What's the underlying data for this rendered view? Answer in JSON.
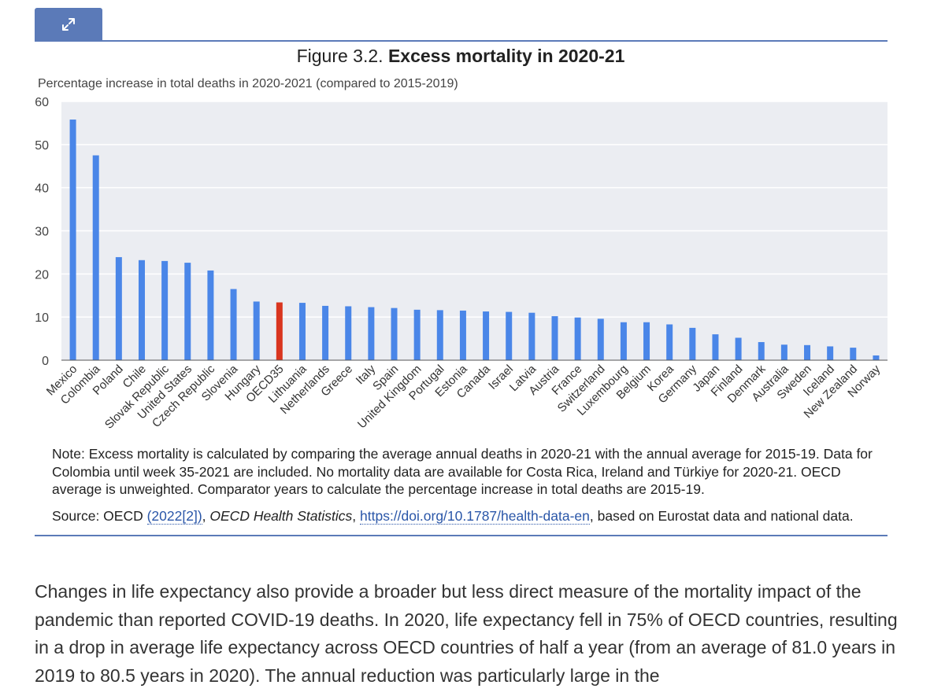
{
  "figure": {
    "expand_icon": "expand-arrows-icon",
    "label": "Figure 3.2.",
    "title": "Excess mortality in 2020-21",
    "accent_color": "#5b7ab8"
  },
  "chart_data": {
    "type": "bar",
    "ylabel": "Percentage increase in total deaths in 2020-2021 (compared to 2015-2019)",
    "ylim": [
      0,
      60
    ],
    "yticks": [
      0,
      10,
      20,
      30,
      40,
      50,
      60
    ],
    "grid": true,
    "categories": [
      "Mexico",
      "Colombia",
      "Poland",
      "Chile",
      "Slovak Republic",
      "United States",
      "Czech Republic",
      "Slovenia",
      "Hungary",
      "OECD35",
      "Lithuania",
      "Netherlands",
      "Greece",
      "Italy",
      "Spain",
      "United Kingdom",
      "Portugal",
      "Estonia",
      "Canada",
      "Israel",
      "Latvia",
      "Austria",
      "France",
      "Switzerland",
      "Luxembourg",
      "Belgium",
      "Korea",
      "Germany",
      "Japan",
      "Finland",
      "Denmark",
      "Australia",
      "Sweden",
      "Iceland",
      "New Zealand",
      "Norway"
    ],
    "values": [
      55.8,
      47.5,
      23.9,
      23.2,
      23.0,
      22.6,
      20.8,
      16.5,
      13.6,
      13.4,
      13.3,
      12.6,
      12.5,
      12.3,
      12.1,
      11.7,
      11.6,
      11.5,
      11.3,
      11.2,
      11.0,
      10.2,
      9.9,
      9.6,
      8.8,
      8.8,
      8.3,
      7.5,
      6.0,
      5.2,
      4.2,
      3.6,
      3.5,
      3.2,
      2.9,
      1.1
    ],
    "highlight": "OECD35",
    "colors": {
      "bar": "#4a86e8",
      "highlight": "#d9351f",
      "plot_bg": "#ebedf2",
      "grid": "#ffffff"
    }
  },
  "notes": {
    "note": "Note: Excess mortality is calculated by comparing the average annual deaths in 2020-21 with the annual average for 2015-19. Data for Colombia until week 35-2021 are included. No mortality data are available for Costa Rica, Ireland and Türkiye for 2020-21. OECD average is unweighted. Comparator years to calculate the percentage increase in total deaths are 2015-19.",
    "source_prefix": "Source: OECD ",
    "source_ref": "(2022[2])",
    "source_sep": ", ",
    "source_pub": "OECD Health Statistics",
    "source_sep2": ", ",
    "source_url": "https://doi.org/10.1787/health-data-en",
    "source_suffix": ", based on Eurostat data and national data."
  },
  "body": {
    "paragraph": "Changes in life expectancy also provide a broader but less direct measure of the mortality impact of the pandemic than reported COVID-19 deaths. In 2020, life expectancy fell in 75% of OECD countries, resulting in a drop in average life expectancy across OECD countries of half a year (from an average of 81.0 years in 2019 to 80.5 years in 2020). The annual reduction was particularly large in the"
  }
}
